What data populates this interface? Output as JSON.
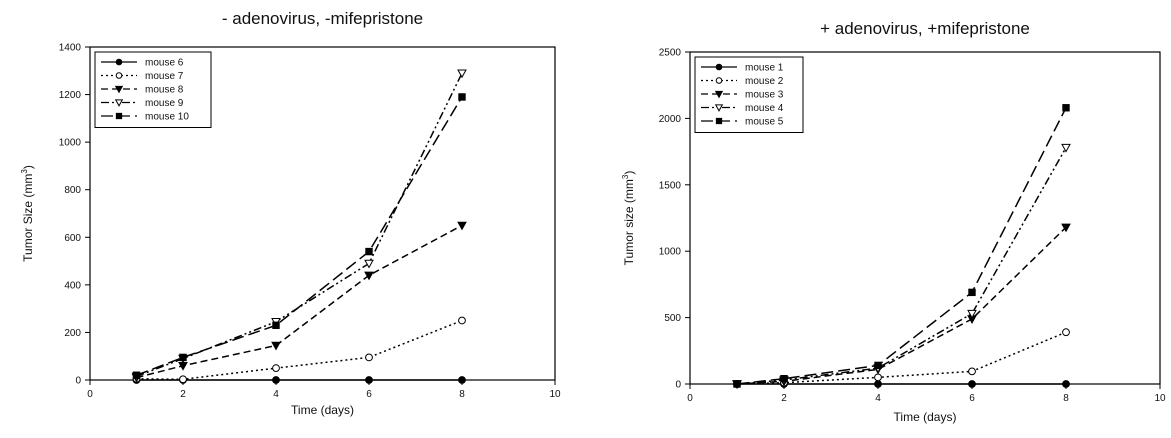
{
  "chart_data": [
    {
      "type": "line",
      "title": "- adenovirus, -mifepristone",
      "xlabel": "Time (days)",
      "ylabel": "Tumor Size (mm",
      "ylabel_sup": "3",
      "ylabel_tail": ")",
      "xlim": [
        0,
        10
      ],
      "ylim": [
        0,
        1400
      ],
      "xticks": [
        0,
        2,
        4,
        6,
        8,
        10
      ],
      "yticks": [
        0,
        200,
        400,
        600,
        800,
        1000,
        1200,
        1400
      ],
      "legend_position": "top-left",
      "grid": false,
      "series": [
        {
          "name": "mouse 6",
          "marker": "filled-circle",
          "dash": "solid",
          "x": [
            1,
            2,
            4,
            6,
            8
          ],
          "y": [
            0,
            0,
            0,
            0,
            0
          ]
        },
        {
          "name": "mouse 7",
          "marker": "open-circle",
          "dash": "dotted",
          "x": [
            1,
            2,
            4,
            6,
            8
          ],
          "y": [
            5,
            3,
            50,
            95,
            250
          ]
        },
        {
          "name": "mouse 8",
          "marker": "filled-triangle-down",
          "dash": "dashed",
          "x": [
            1,
            2,
            4,
            6,
            8
          ],
          "y": [
            10,
            60,
            145,
            440,
            650
          ]
        },
        {
          "name": "mouse 9",
          "marker": "open-triangle-down",
          "dash": "dash-dot-dot",
          "x": [
            1,
            2,
            4,
            6,
            8
          ],
          "y": [
            15,
            90,
            245,
            490,
            1290
          ]
        },
        {
          "name": "mouse 10",
          "marker": "filled-square",
          "dash": "long-dash",
          "x": [
            1,
            2,
            4,
            6,
            8
          ],
          "y": [
            20,
            95,
            230,
            540,
            1190
          ]
        }
      ]
    },
    {
      "type": "line",
      "title": "+ adenovirus, +mifepristone",
      "xlabel": "Time (days)",
      "ylabel": "Tumor size (mm",
      "ylabel_sup": "3",
      "ylabel_tail": ")",
      "xlim": [
        0,
        10
      ],
      "ylim": [
        0,
        2500
      ],
      "xticks": [
        0,
        2,
        4,
        6,
        8,
        10
      ],
      "yticks": [
        0,
        500,
        1000,
        1500,
        2000,
        2500
      ],
      "legend_position": "top-left",
      "grid": false,
      "series": [
        {
          "name": "mouse 1",
          "marker": "filled-circle",
          "dash": "solid",
          "x": [
            1,
            2,
            4,
            6,
            8
          ],
          "y": [
            0,
            0,
            0,
            0,
            0
          ]
        },
        {
          "name": "mouse 2",
          "marker": "open-circle",
          "dash": "dotted",
          "x": [
            1,
            2,
            4,
            6,
            8
          ],
          "y": [
            0,
            10,
            50,
            95,
            390
          ]
        },
        {
          "name": "mouse 3",
          "marker": "filled-triangle-down",
          "dash": "dashed",
          "x": [
            1,
            2,
            4,
            6,
            8
          ],
          "y": [
            0,
            20,
            110,
            490,
            1180
          ]
        },
        {
          "name": "mouse 4",
          "marker": "open-triangle-down",
          "dash": "dash-dot-dot",
          "x": [
            1,
            2,
            4,
            6,
            8
          ],
          "y": [
            0,
            30,
            120,
            530,
            1780
          ]
        },
        {
          "name": "mouse 5",
          "marker": "filled-square",
          "dash": "long-dash",
          "x": [
            1,
            2,
            4,
            6,
            8
          ],
          "y": [
            0,
            40,
            140,
            690,
            2080
          ]
        }
      ]
    }
  ]
}
